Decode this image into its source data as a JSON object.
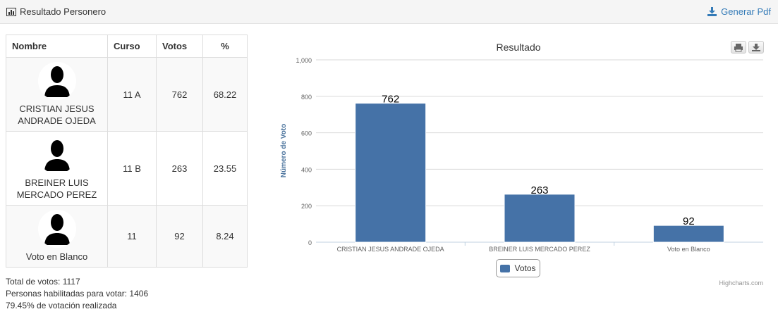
{
  "header": {
    "title": "Resultado Personero",
    "pdf_label": "Generar Pdf"
  },
  "table": {
    "headers": [
      "Nombre",
      "Curso",
      "Votos",
      "%"
    ],
    "rows": [
      {
        "name_line1": "CRISTIAN JESUS",
        "name_line2": "ANDRADE OJEDA",
        "curso": "11 A",
        "votos": "762",
        "pct": "68.22"
      },
      {
        "name_line1": "BREINER LUIS",
        "name_line2": "MERCADO PEREZ",
        "curso": "11 B",
        "votos": "263",
        "pct": "23.55"
      },
      {
        "name_line1": "",
        "name_line2": "Voto en Blanco",
        "curso": "11",
        "votos": "92",
        "pct": "8.24"
      }
    ]
  },
  "summary": {
    "total": "Total de votos: 1117",
    "habilitadas": "Personas habilitadas para votar: 1406",
    "realizada": "79.45% de votación realizada"
  },
  "chart_data": {
    "type": "bar",
    "title": "Resultado",
    "xlabel": "",
    "ylabel": "Número de Voto",
    "categories": [
      "CRISTIAN JESUS ANDRADE OJEDA",
      "BREINER LUIS MERCADO PEREZ",
      "Voto en Blanco"
    ],
    "series": [
      {
        "name": "Votos",
        "values": [
          762,
          263,
          92
        ]
      }
    ],
    "ylim": [
      0,
      1000
    ],
    "yticks": [
      0,
      200,
      400,
      600,
      800,
      1000
    ],
    "ytick_labels": [
      "0",
      "200",
      "400",
      "600",
      "800",
      "1,000"
    ],
    "grid": true,
    "legend": "bottom-center",
    "bar_color": "#4572a7",
    "credits": "Highcharts.com"
  },
  "colors": {
    "link": "#337ab7",
    "bar": "#4572a7",
    "axis_title": "#4d759e"
  }
}
